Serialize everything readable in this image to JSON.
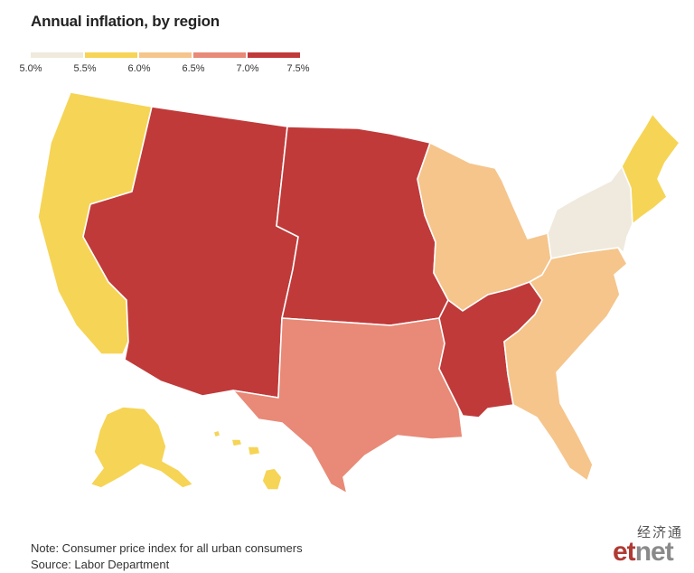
{
  "title": "Annual inflation, by region",
  "legend": {
    "ticks": [
      "5.0%",
      "5.5%",
      "6.0%",
      "6.5%",
      "7.0%",
      "7.5%"
    ],
    "colors": [
      "#efeadd",
      "#f6d455",
      "#f5c58c",
      "#e88a77",
      "#c03a3a"
    ]
  },
  "regions": [
    {
      "name": "New England",
      "inflation_bin": "5.5%–6.0%",
      "color": "#f6d455"
    },
    {
      "name": "Middle Atlantic",
      "inflation_bin": "5.0%–5.5%",
      "color": "#efeadd"
    },
    {
      "name": "East North Central",
      "inflation_bin": "6.0%–6.5%",
      "color": "#f5c58c"
    },
    {
      "name": "West North Central",
      "inflation_bin": "7.0%–7.5%",
      "color": "#c03a3a"
    },
    {
      "name": "South Atlantic",
      "inflation_bin": "6.0%–6.5%",
      "color": "#f5c58c"
    },
    {
      "name": "East South Central",
      "inflation_bin": "7.0%–7.5%",
      "color": "#c03a3a"
    },
    {
      "name": "West South Central",
      "inflation_bin": "6.5%–7.0%",
      "color": "#e88a77"
    },
    {
      "name": "Mountain",
      "inflation_bin": "7.0%–7.5%",
      "color": "#c03a3a"
    },
    {
      "name": "Pacific",
      "inflation_bin": "5.5%–6.0%",
      "color": "#f6d455"
    }
  ],
  "note": "Note: Consumer price index for all urban consumers",
  "source": "Source: Labor Department",
  "logo": {
    "cn": "经济通",
    "en_a": "et",
    "en_b": "net"
  }
}
